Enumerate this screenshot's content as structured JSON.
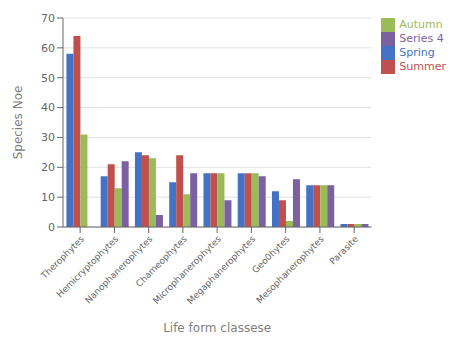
{
  "chart_data": {
    "type": "bar",
    "categories": [
      "Therophytes",
      "Hemicryptophytes",
      "Nanophanerophytes",
      "Chameophytes",
      "Microphanerophytes",
      "Megaphanerophytes",
      "Geo0hytes",
      "Mesophanerophytes",
      "Parasite"
    ],
    "series": [
      {
        "name": "Spring",
        "color": "#4472C4",
        "values": [
          58,
          17,
          25,
          15,
          18,
          18,
          12,
          14,
          1
        ]
      },
      {
        "name": "Summer",
        "color": "#C0504D",
        "values": [
          64,
          21,
          24,
          24,
          18,
          18,
          9,
          14,
          1
        ]
      },
      {
        "name": "Autumn",
        "color": "#9BBB59",
        "values": [
          31,
          13,
          23,
          11,
          18,
          18,
          2,
          14,
          1
        ]
      },
      {
        "name": "Series 4",
        "color": "#7B61A0",
        "values": [
          0,
          22,
          4,
          18,
          9,
          17,
          16,
          14,
          1
        ]
      }
    ],
    "xlabel": "Life form classese",
    "ylabel": "Species Noe",
    "ylim": [
      0,
      70
    ],
    "yticks": [
      0,
      10,
      20,
      30,
      40,
      50,
      60,
      70
    ],
    "grid": true,
    "legend": "upper right"
  }
}
